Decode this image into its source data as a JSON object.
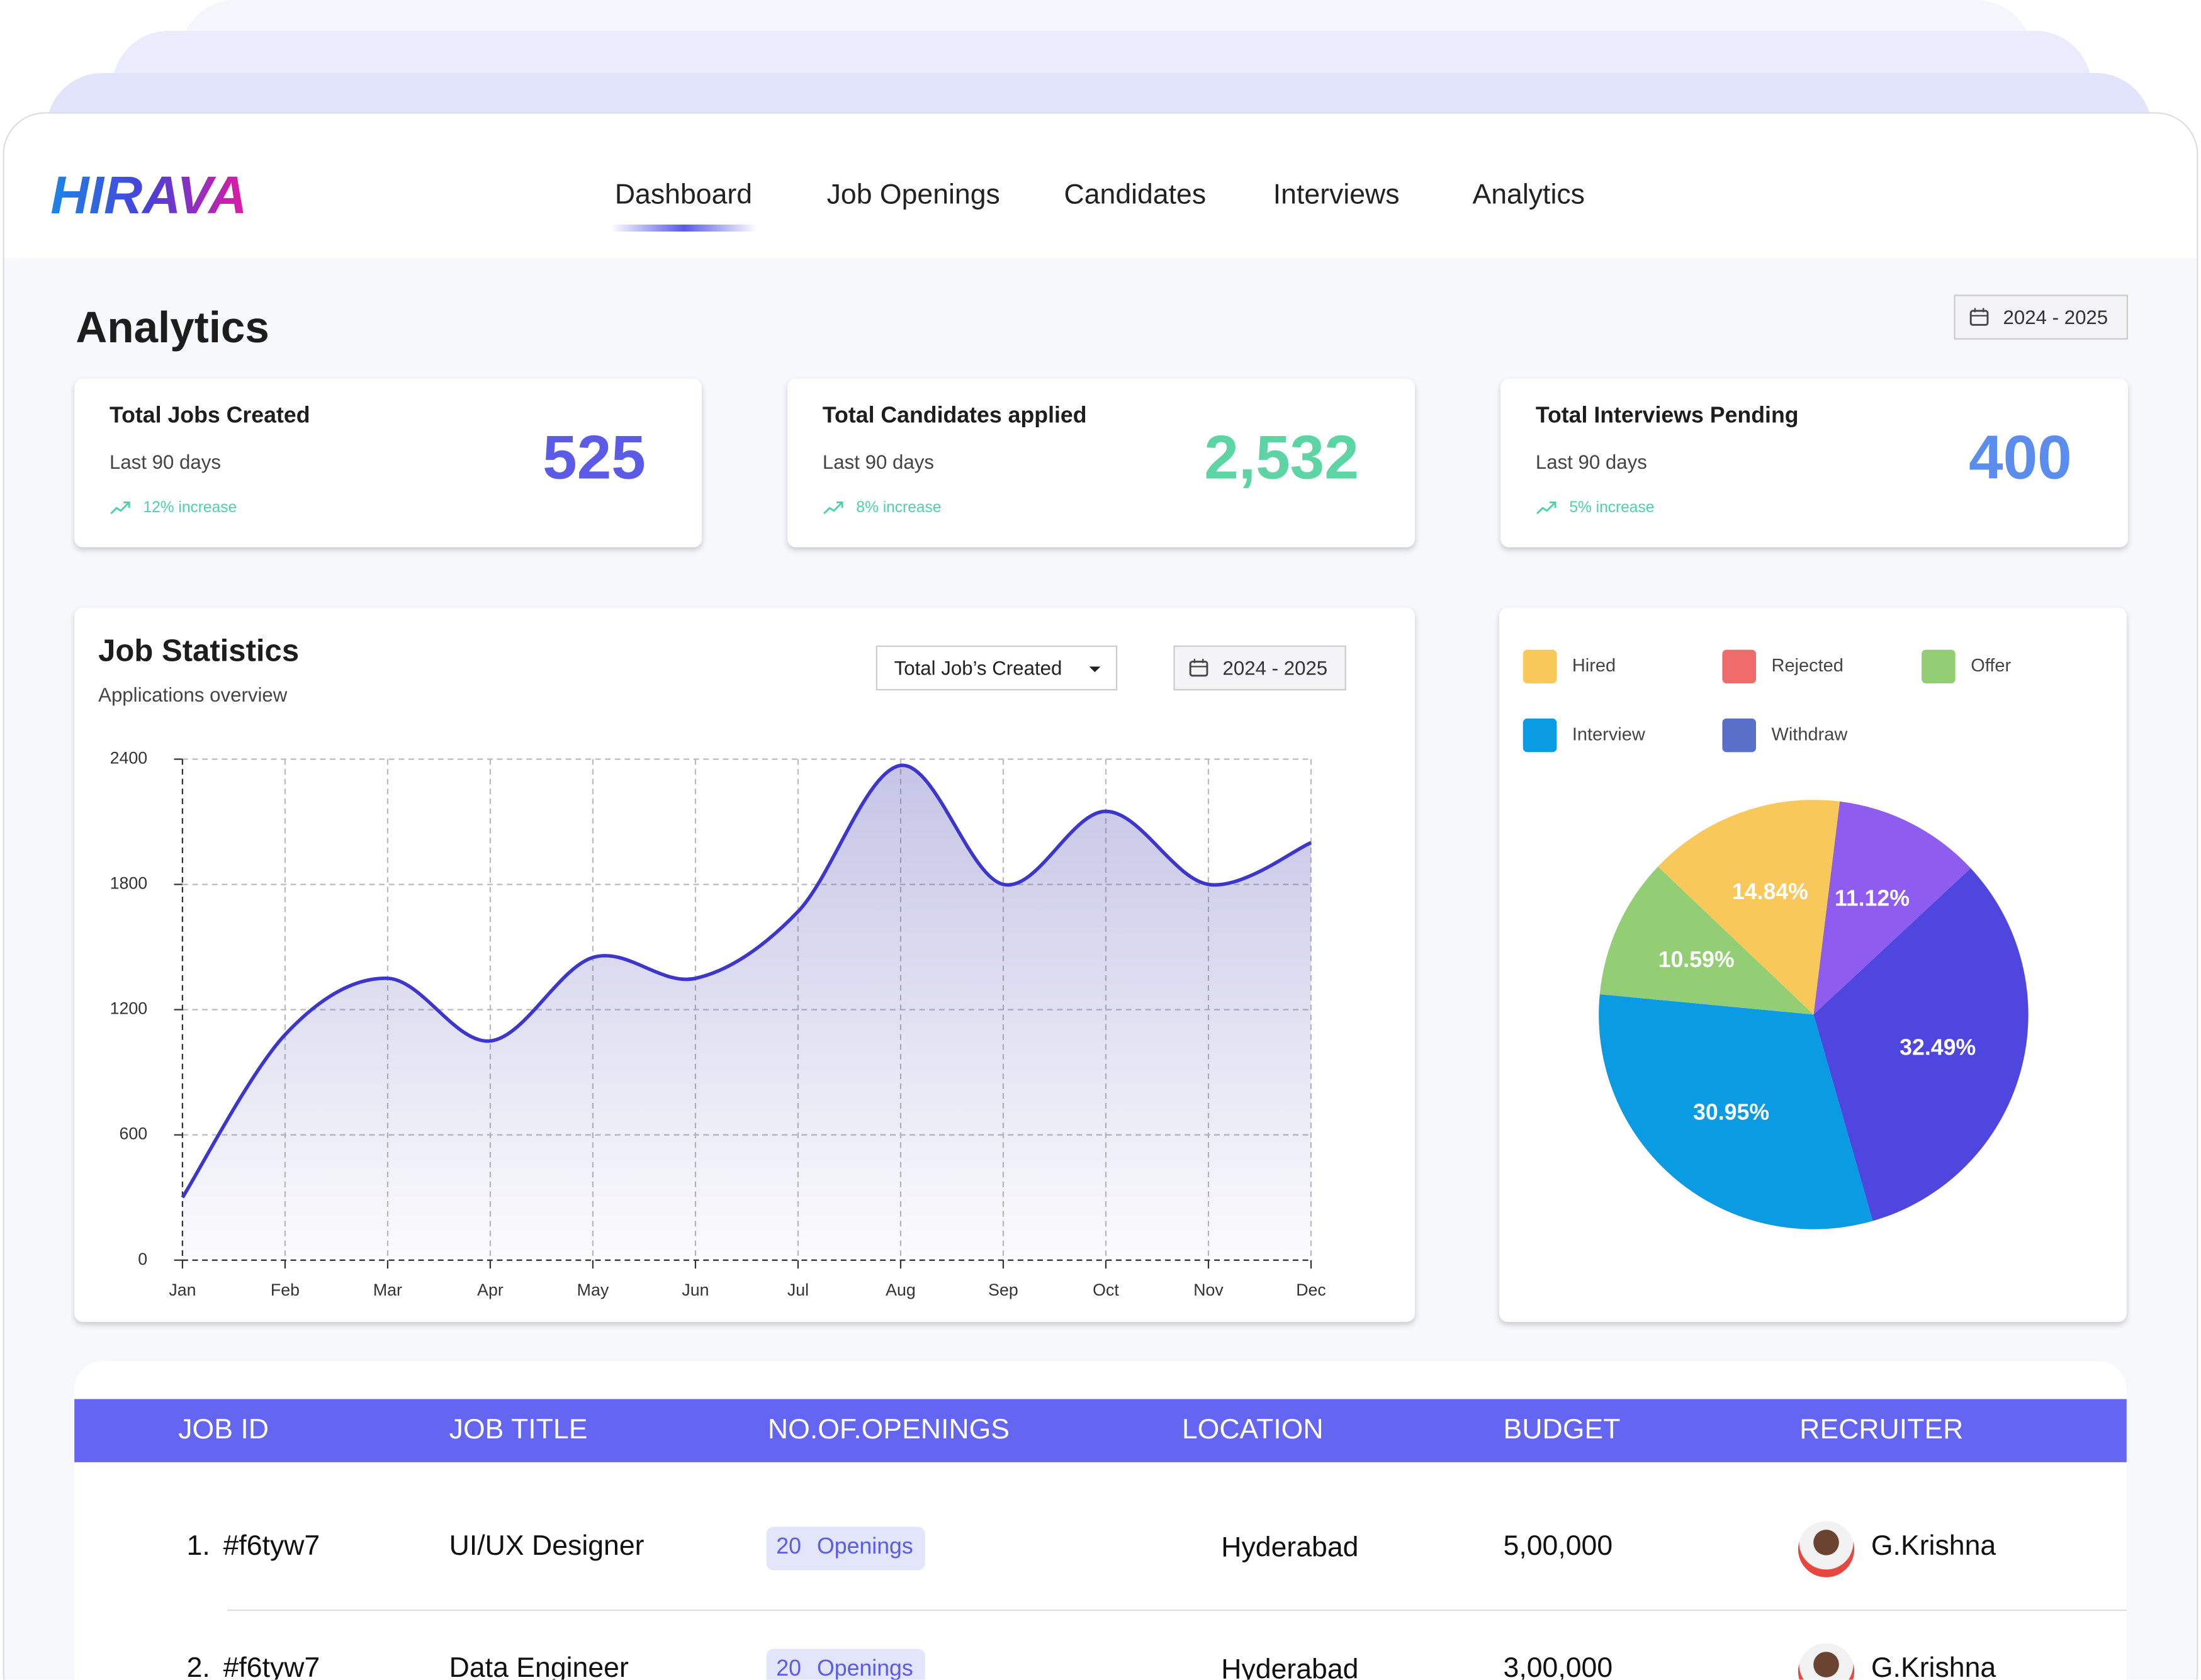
{
  "nav": {
    "logo": "HIRAVA",
    "items": [
      "Dashboard",
      "Job Openings",
      "Candidates",
      "Interviews",
      "Analytics"
    ]
  },
  "page": {
    "title": "Analytics",
    "date_range": "2024 - 2025"
  },
  "stats": [
    {
      "title": "Total Jobs Created",
      "period": "Last 90 days",
      "value": "525",
      "change": "12% increase",
      "color": "#5b5be8"
    },
    {
      "title": "Total Candidates applied",
      "period": "Last 90 days",
      "value": "2,532",
      "change": "8% increase",
      "color": "#5dd4a4"
    },
    {
      "title": "Total Interviews Pending",
      "period": "Last 90 days",
      "value": "400",
      "change": "5% increase",
      "color": "#5b8def"
    }
  ],
  "job_statistics": {
    "title": "Job Statistics",
    "subtitle": "Applications overview",
    "filter": "Total Job’s Created",
    "date_range": "2024 - 2025",
    "chart": {
      "type": "line",
      "categories": [
        "Jan",
        "Feb",
        "Mar",
        "Apr",
        "May",
        "Jun",
        "Jul",
        "Aug",
        "Sep",
        "Oct",
        "Nov",
        "Dec"
      ],
      "values": [
        300,
        1080,
        1350,
        1050,
        1450,
        1350,
        1670,
        2370,
        1800,
        2150,
        1800,
        2000
      ],
      "color": "#3d36cc",
      "ylim": [
        0,
        2400
      ],
      "yticks": [
        0,
        600,
        1200,
        1800,
        2400
      ],
      "grid": true
    }
  },
  "status_chart": {
    "type": "pie",
    "legend": [
      {
        "name": "Hired",
        "color": "#f9c85a"
      },
      {
        "name": "Rejected",
        "color": "#f06b6b"
      },
      {
        "name": "Offer",
        "color": "#93ce74"
      },
      {
        "name": "Interview",
        "color": "#0a9be3"
      },
      {
        "name": "Withdraw",
        "color": "#5a6fc8"
      }
    ],
    "values": [
      11.12,
      32.49,
      30.95,
      10.59,
      14.84
    ],
    "value_labels": [
      "11.12%",
      "32.49%",
      "30.95%",
      "10.59%",
      "14.84%"
    ],
    "colors": [
      "#8f5cf0",
      "#4f46e0",
      "#0a9be3",
      "#93ce74",
      "#f9c85a"
    ]
  },
  "table": {
    "columns": [
      "JOB ID",
      "JOB TITLE",
      "NO.OF.OPENINGS",
      "LOCATION",
      "BUDGET",
      "RECRUITER"
    ],
    "rows": [
      {
        "index": "1.",
        "job_id": "#f6tyw7",
        "title": "UI/UX Designer",
        "openings": 20,
        "openings_unit": "Openings",
        "location": "Hyderabad",
        "budget": "5,00,000",
        "recruiter": "G.Krishna"
      },
      {
        "index": "2.",
        "job_id": "#f6tyw7",
        "title": "Data Engineer",
        "openings": 20,
        "openings_unit": "Openings",
        "location": "Hyderabad",
        "budget": "3,00,000",
        "recruiter": "G.Krishna"
      }
    ]
  }
}
